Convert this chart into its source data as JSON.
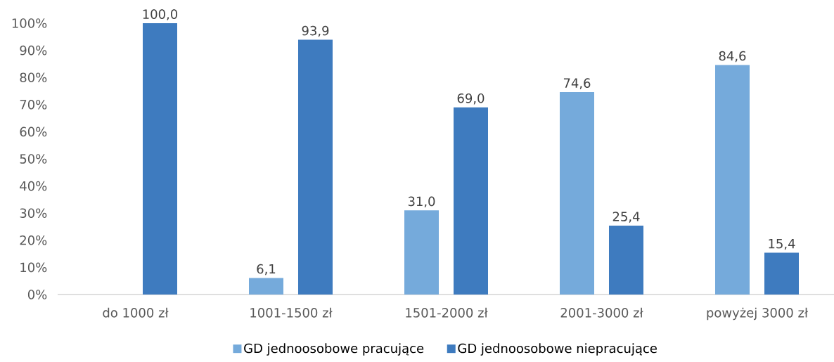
{
  "chart_data": {
    "type": "bar",
    "categories": [
      "do 1000 zł",
      "1001-1500 zł",
      "1501-2000 zł",
      "2001-3000 zł",
      "powyżej 3000 zł"
    ],
    "series": [
      {
        "name": "GD jednoosobowe pracujące",
        "color": "#75aadb",
        "values": [
          0,
          6.1,
          31.0,
          74.6,
          84.6
        ],
        "value_labels": [
          null,
          "6,1",
          "31,0",
          "74,6",
          "84,6"
        ]
      },
      {
        "name": "GD jednoosobowe niepracujące",
        "color": "#3e7bbf",
        "values": [
          100.0,
          93.9,
          69.0,
          25.4,
          15.4
        ],
        "value_labels": [
          "100,0",
          "93,9",
          "69,0",
          "25,4",
          "15,4"
        ]
      }
    ],
    "ylim": [
      0,
      100
    ],
    "yticks": [
      {
        "value": 0,
        "label": "0%"
      },
      {
        "value": 10,
        "label": "10%"
      },
      {
        "value": 20,
        "label": "20%"
      },
      {
        "value": 30,
        "label": "30%"
      },
      {
        "value": 40,
        "label": "40%"
      },
      {
        "value": 50,
        "label": "50%"
      },
      {
        "value": 60,
        "label": "60%"
      },
      {
        "value": 70,
        "label": "70%"
      },
      {
        "value": 80,
        "label": "80%"
      },
      {
        "value": 90,
        "label": "90%"
      },
      {
        "value": 100,
        "label": "100%"
      }
    ],
    "legend": "bottom"
  }
}
